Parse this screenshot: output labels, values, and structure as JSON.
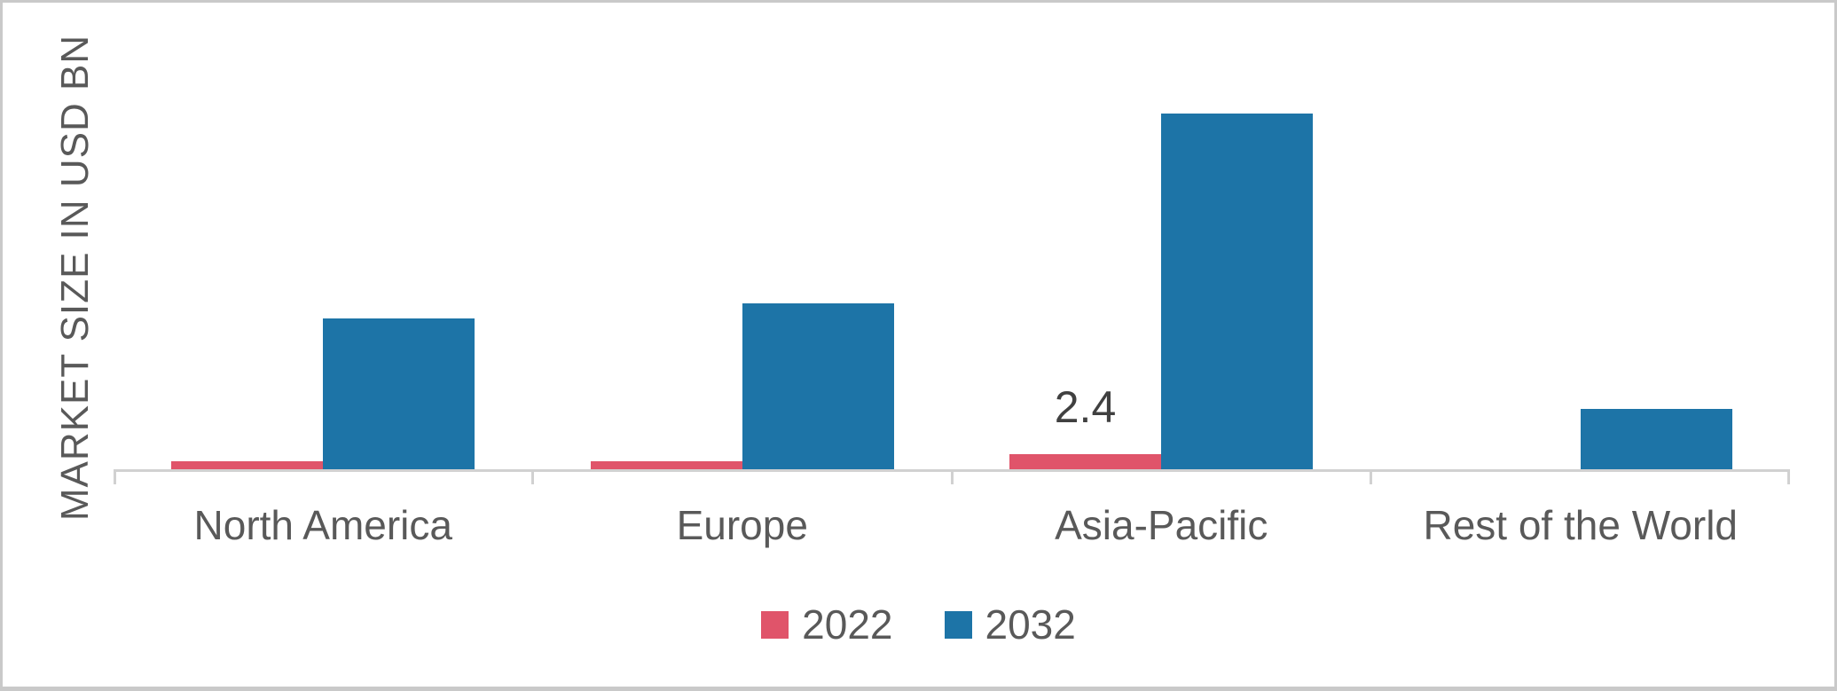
{
  "figure": {
    "background_color": "#ffffff",
    "border_color": "#c9c9c9"
  },
  "chart_data": {
    "type": "bar",
    "title": "",
    "xlabel": "",
    "ylabel": "MARKET SIZE IN USD BN",
    "categories": [
      "North America",
      "Europe",
      "Asia-Pacific",
      "Rest of the World"
    ],
    "series": [
      {
        "name": "2022",
        "color": "#e0546a",
        "values": [
          1.3,
          1.3,
          2.4,
          0
        ],
        "value_labels": [
          "",
          "",
          "2.4",
          ""
        ]
      },
      {
        "name": "2032",
        "color": "#1d74a7",
        "values": [
          23.9,
          26.4,
          56.5,
          9.6
        ],
        "value_labels": [
          "",
          "",
          "",
          ""
        ]
      }
    ],
    "ylim": [
      0,
      60
    ],
    "y_tick_labels_visible": false,
    "grid": false,
    "axis_color": "#d1d1d1",
    "text_color": "#595959",
    "value_label_color": "#404040",
    "legend_position": "bottom-center"
  }
}
